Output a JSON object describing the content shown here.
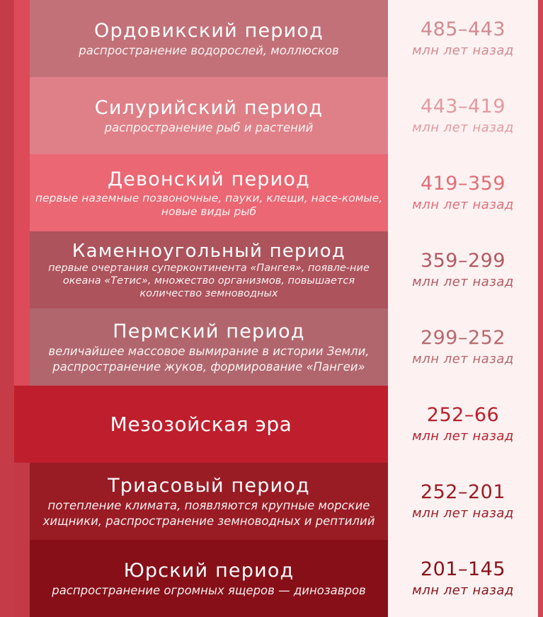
{
  "colors": {
    "background": "#c23a45",
    "right_column": "#fdf1f1"
  },
  "periods": [
    {
      "title": "Ордовикский период",
      "desc": "распространение водорослей, моллюсков",
      "range": "485–443",
      "unit": "млн лет назад",
      "bg": "#c27178",
      "date_color": "#d18a90"
    },
    {
      "title": "Силурийский период",
      "desc": "распространение рыб и растений",
      "range": "443–419",
      "unit": "млн лет назад",
      "bg": "#df8088",
      "date_color": "#e29aa0"
    },
    {
      "title": "Девонский период",
      "desc": "первые наземные позвоночные, пауки, клещи, насе-комые, новые виды рыб",
      "range": "419–359",
      "unit": "млн лет назад",
      "bg": "#ea6773",
      "date_color": "#e06e78"
    },
    {
      "title": "Каменноугольный период",
      "desc": "первые очертания суперконтинента «Пангея», появле-ние океана «Тетис», множество организмов, повышается количество земноводных",
      "range": "359–299",
      "unit": "млн лет назад",
      "bg": "#ad535c",
      "date_color": "#b05a63"
    },
    {
      "title": "Пермский период",
      "desc": "величайшее массовое вымирание в истории Земли, распространение жуков, формирование «Пангеи»",
      "range": "299–252",
      "unit": "млн лет назад",
      "bg": "#b1666d",
      "date_color": "#b7696f"
    },
    {
      "title": "Мезозойская эра",
      "desc": "",
      "range": "252–66",
      "unit": "млн лет назад",
      "bg": "#bf1f2d",
      "date_color": "#b8202d"
    },
    {
      "title": "Триасовый период",
      "desc": "потепление климата, появляются крупные морские хищники, распространение земноводных и рептилий",
      "range": "252–201",
      "unit": "млн лет назад",
      "bg": "#991c25",
      "date_color": "#9a1e27"
    },
    {
      "title": "Юрский период",
      "desc": "распространение огромных ящеров — динозавров",
      "range": "201–145",
      "unit": "млн лет назад",
      "bg": "#860f18",
      "date_color": "#86121b"
    }
  ]
}
